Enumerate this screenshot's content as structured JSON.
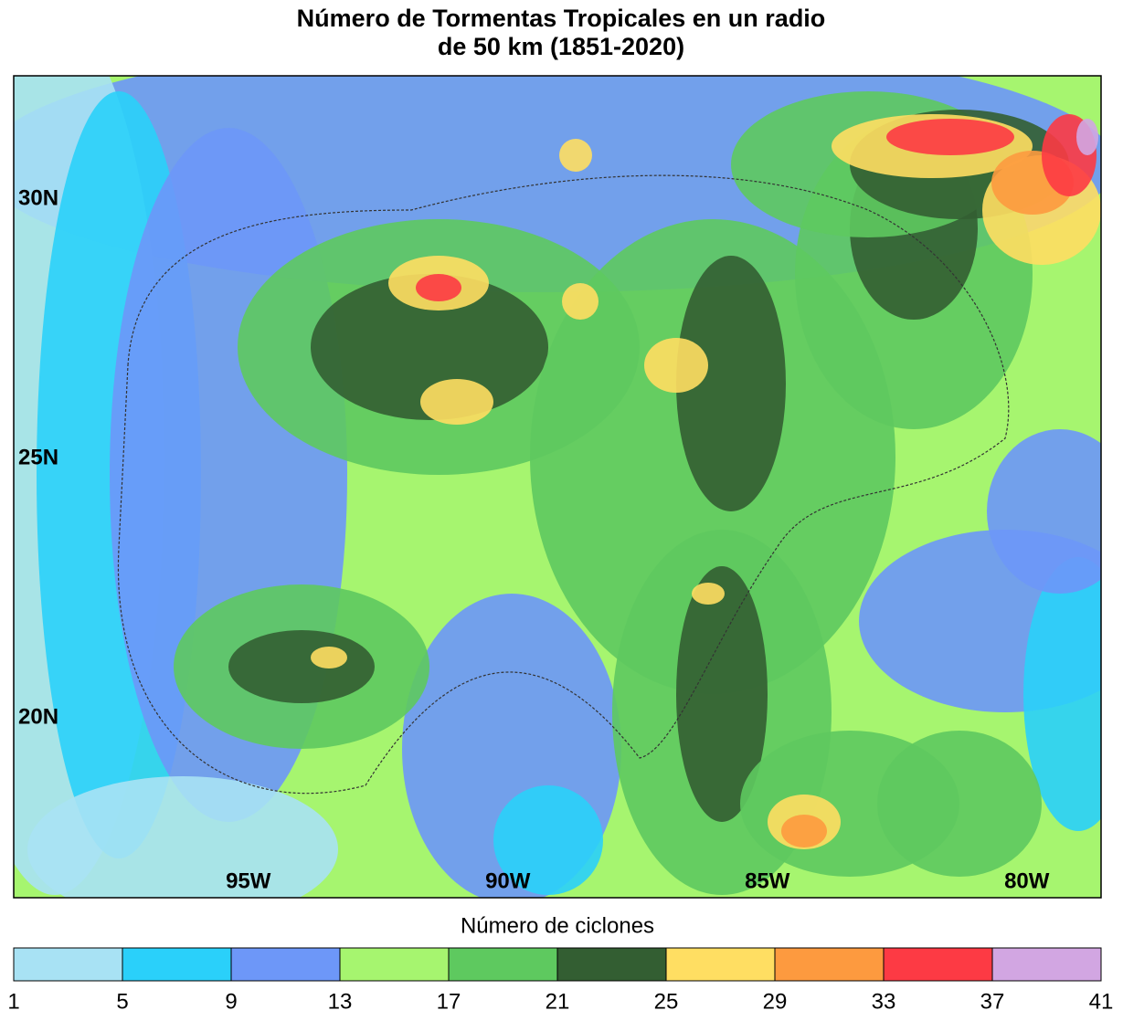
{
  "map": {
    "title_lines": [
      "Número de Tormentas Tropicales en un radio",
      "de 50 km (1851-2020)"
    ],
    "xlim": [
      -99.52,
      -78.57
    ],
    "ylim": [
      16.53,
      32.38
    ],
    "lat_ticks": [
      {
        "value": 30,
        "label": "30N"
      },
      {
        "value": 25,
        "label": "25N"
      },
      {
        "value": 20,
        "label": "20N"
      }
    ],
    "lon_ticks": [
      {
        "value": -95,
        "label": "95W"
      },
      {
        "value": -90,
        "label": "90W"
      },
      {
        "value": -85,
        "label": "85W"
      },
      {
        "value": -80,
        "label": "80W"
      }
    ]
  },
  "colorbar": {
    "label": "Número de ciclones",
    "lim": [
      1,
      41
    ],
    "ticks": [
      1,
      5,
      9,
      13,
      17,
      21,
      25,
      29,
      33,
      37,
      41
    ],
    "colors": [
      "#a8e2f4",
      "#2ad0fa",
      "#6d97f8",
      "#a6f56f",
      "#5ec95f",
      "#335e32",
      "#ffde62",
      "#fd9a3f",
      "#fd3a44",
      "#d2a6e2"
    ]
  }
}
